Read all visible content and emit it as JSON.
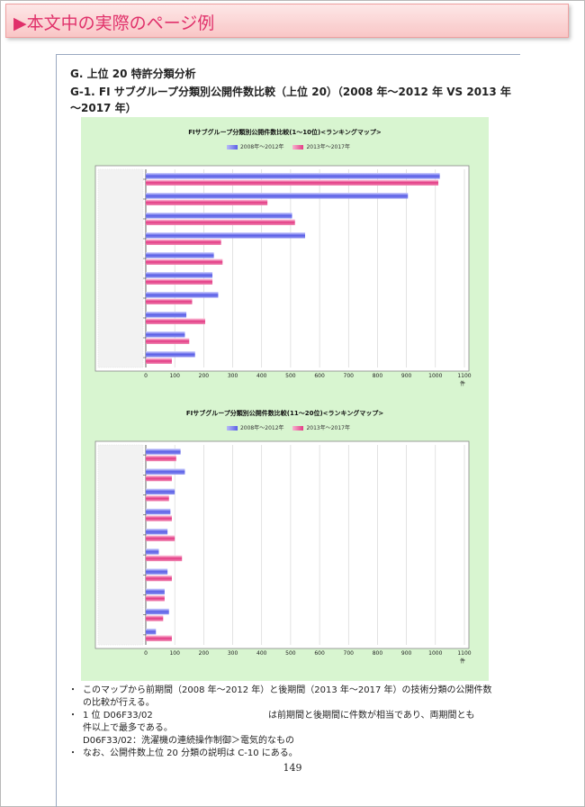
{
  "banner": {
    "title": "▶本文中の実際のページ例"
  },
  "section": {
    "heading": "G.  上位 20 特許分類分析",
    "subheading": "G-1.  FI サブグループ分類別公開件数比較（上位 20）（2008 年～2012 年  VS 2013 年～2017 年）"
  },
  "colors": {
    "series_a": "#5a5fe6",
    "series_b": "#e33b85",
    "panel": "#d8f5d0"
  },
  "chart_data": [
    {
      "type": "bar",
      "title": "FIサブグループ分類別公開件数比較(1～10位)<ランキングマップ>",
      "categories": [
        "",
        "",
        "",
        "",
        "",
        "",
        "",
        "",
        "",
        ""
      ],
      "series": [
        {
          "name": "2008年～2012年",
          "values": [
            1015,
            905,
            505,
            550,
            235,
            230,
            250,
            140,
            135,
            170
          ]
        },
        {
          "name": "2013年～2017年",
          "values": [
            1010,
            420,
            515,
            260,
            265,
            230,
            160,
            205,
            150,
            90
          ]
        }
      ],
      "xlim": [
        0,
        1100
      ],
      "xticks": [
        "0",
        "100",
        "200",
        "300",
        "400",
        "500",
        "600",
        "700",
        "800",
        "900",
        "1000",
        "1100"
      ],
      "unit": "件",
      "legend": "top"
    },
    {
      "type": "bar",
      "title": "FIサブグループ分類別公開件数比較(11～20位)<ランキングマップ>",
      "categories": [
        "",
        "",
        "",
        "",
        "",
        "",
        "",
        "",
        "",
        ""
      ],
      "series": [
        {
          "name": "2008年～2012年",
          "values": [
            120,
            135,
            100,
            85,
            75,
            45,
            75,
            65,
            80,
            35
          ]
        },
        {
          "name": "2013年～2017年",
          "values": [
            105,
            90,
            80,
            90,
            100,
            125,
            90,
            65,
            60,
            90
          ]
        }
      ],
      "xlim": [
        0,
        1100
      ],
      "xticks": [
        "0",
        "100",
        "200",
        "300",
        "400",
        "500",
        "600",
        "700",
        "800",
        "900",
        "1000",
        "1100"
      ],
      "unit": "件",
      "legend": "top"
    }
  ],
  "notes": {
    "b1_line1": "このマップから前期間（2008 年～2012 年）と後期間（2013 年～2017 年）の技術分類の公開件数",
    "b1_line2": "の比較が行える。",
    "b2_left": "1 位  D06F33/02",
    "b2_right": "は前期間と後期間に件数が相当であり、両期間とも",
    "b2_line2": "件以上で最多である。",
    "b2_line3": "D06F33/02：洗濯機の連続操作制御＞電気的なもの",
    "b3": "なお、公開件数上位 20 分類の説明は C-10 にある。",
    "bullet": "・"
  },
  "page": {
    "number": "149"
  }
}
